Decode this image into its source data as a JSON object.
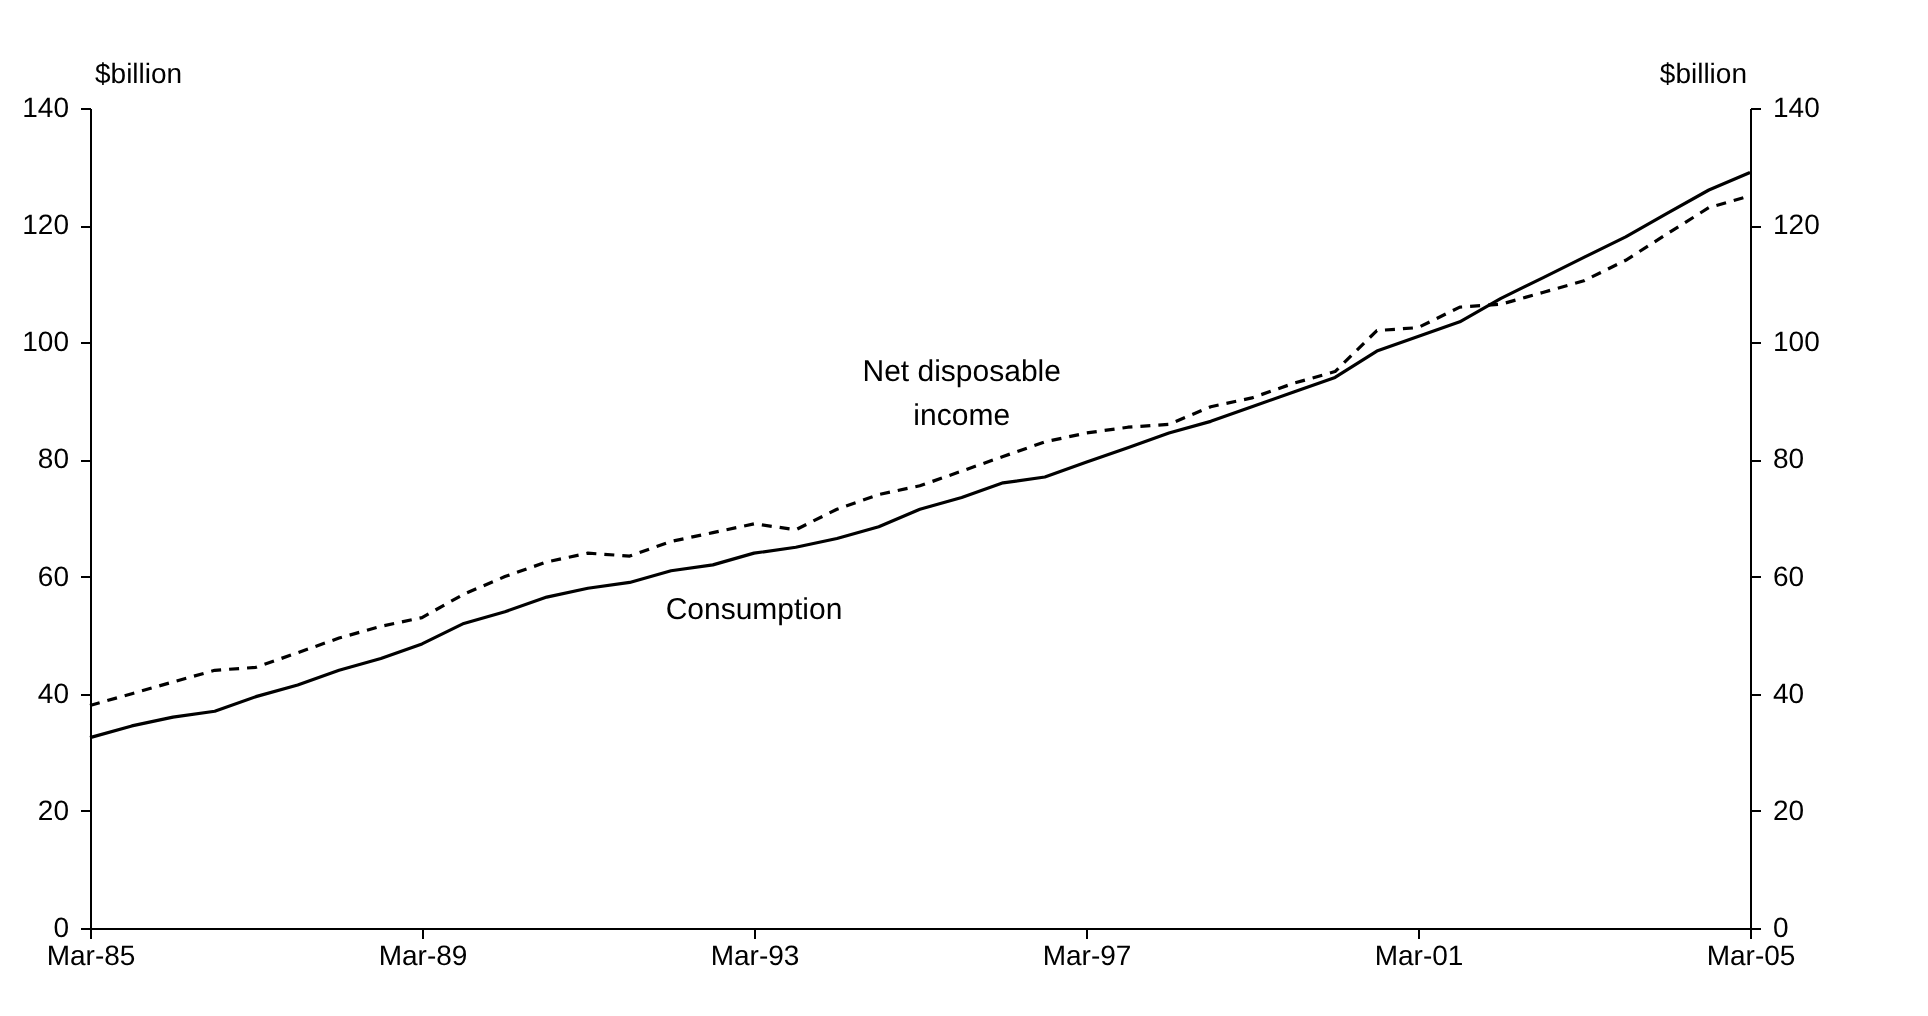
{
  "chart_data": {
    "type": "line",
    "ylabel": "$billion",
    "y2label": "$billion",
    "x": [
      "1985-03",
      "1985-09",
      "1986-03",
      "1986-09",
      "1987-03",
      "1987-09",
      "1988-03",
      "1988-09",
      "1989-03",
      "1989-09",
      "1990-03",
      "1990-09",
      "1991-03",
      "1991-09",
      "1992-03",
      "1992-09",
      "1993-03",
      "1993-09",
      "1994-03",
      "1994-09",
      "1995-03",
      "1995-09",
      "1996-03",
      "1996-09",
      "1997-03",
      "1997-09",
      "1998-03",
      "1998-09",
      "1999-03",
      "1999-09",
      "2000-03",
      "2000-09",
      "2001-03",
      "2001-09",
      "2002-03",
      "2002-09",
      "2003-03",
      "2003-09",
      "2004-03",
      "2004-09",
      "2005-03"
    ],
    "series": [
      {
        "name": "Consumption",
        "color": "#000000",
        "line_style": "solid",
        "values": [
          32.5,
          34.5,
          36,
          37,
          39.5,
          41.5,
          44,
          46,
          48.5,
          52,
          54,
          56.5,
          58,
          59,
          61,
          62,
          64,
          65,
          66.5,
          68.5,
          71.5,
          73.5,
          76,
          77,
          79.5,
          82,
          84.5,
          86.5,
          89,
          91.5,
          94,
          98.5,
          101,
          103.5,
          107.5,
          111,
          114.5,
          118,
          122,
          126,
          129
        ]
      },
      {
        "name": "Net disposable income",
        "color": "#000000",
        "line_style": "dashed",
        "values": [
          38,
          40,
          42,
          44,
          44.5,
          47,
          49.5,
          51.5,
          53,
          57,
          60,
          62.5,
          64,
          63.5,
          66,
          67.5,
          69,
          68,
          71.5,
          74,
          75.5,
          78,
          80.5,
          83,
          84.5,
          85.5,
          86,
          89,
          90.5,
          93,
          95,
          102,
          102.5,
          106,
          106.5,
          108.5,
          110.5,
          114,
          118.5,
          123,
          125
        ]
      }
    ],
    "xlim": [
      "1985-03",
      "2005-03"
    ],
    "xticks": [
      {
        "value": "1985-03",
        "label": "Mar-85"
      },
      {
        "value": "1989-03",
        "label": "Mar-89"
      },
      {
        "value": "1993-03",
        "label": "Mar-93"
      },
      {
        "value": "1997-03",
        "label": "Mar-97"
      },
      {
        "value": "2001-03",
        "label": "Mar-01"
      },
      {
        "value": "2005-03",
        "label": "Mar-05"
      }
    ],
    "ylim": [
      0,
      140
    ],
    "yticks": [
      0,
      20,
      40,
      60,
      80,
      100,
      120,
      140
    ],
    "y2lim": [
      0,
      140
    ],
    "y2ticks": [
      0,
      20,
      40,
      60,
      80,
      100,
      120,
      140
    ],
    "grid": false
  }
}
